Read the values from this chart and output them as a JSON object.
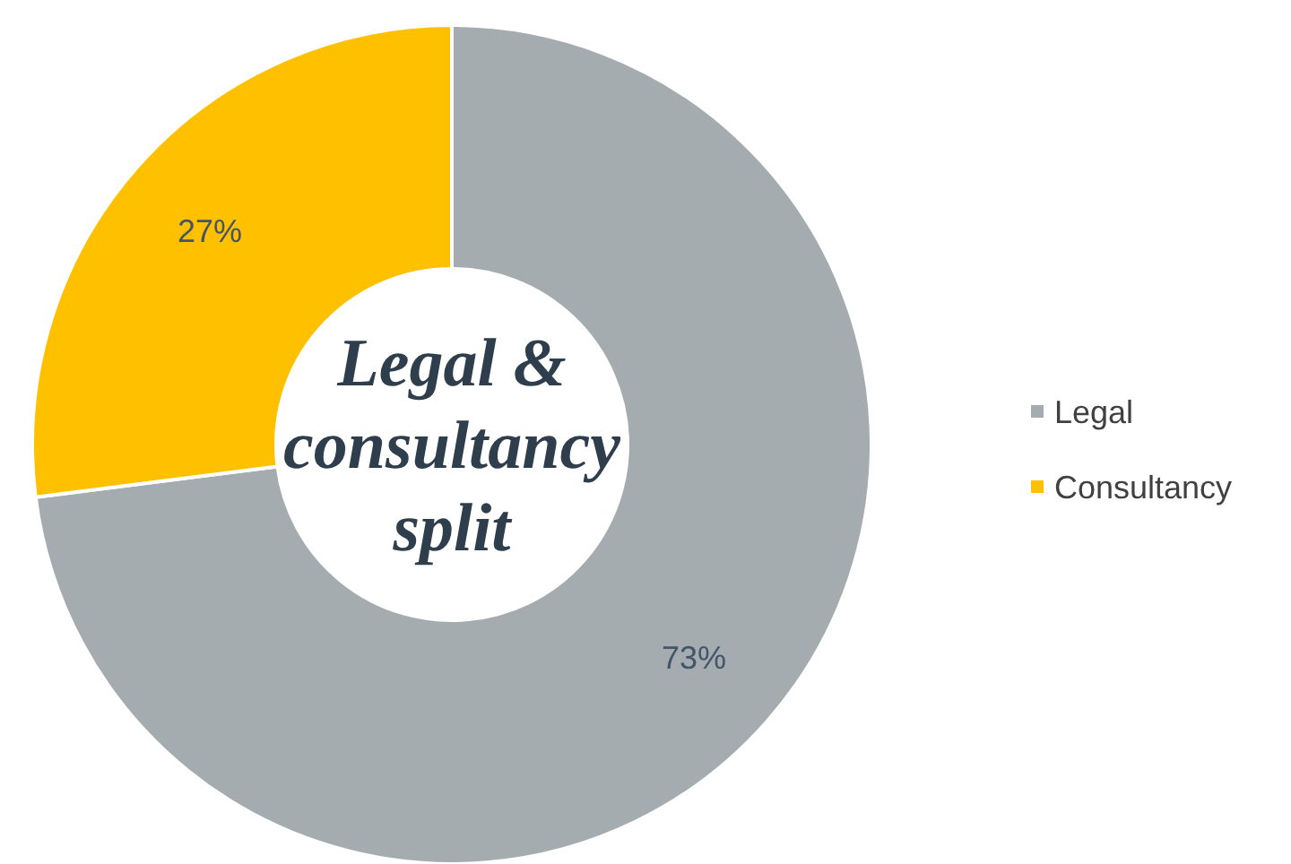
{
  "chart_data": {
    "type": "donut",
    "title": "Legal & consultancy split",
    "categories": [
      "Legal",
      "Consultancy"
    ],
    "values": [
      73,
      27
    ],
    "colors": [
      "#a5acaf",
      "#ffc000"
    ],
    "value_labels": [
      "73%",
      "27%"
    ],
    "legend": "right"
  }
}
